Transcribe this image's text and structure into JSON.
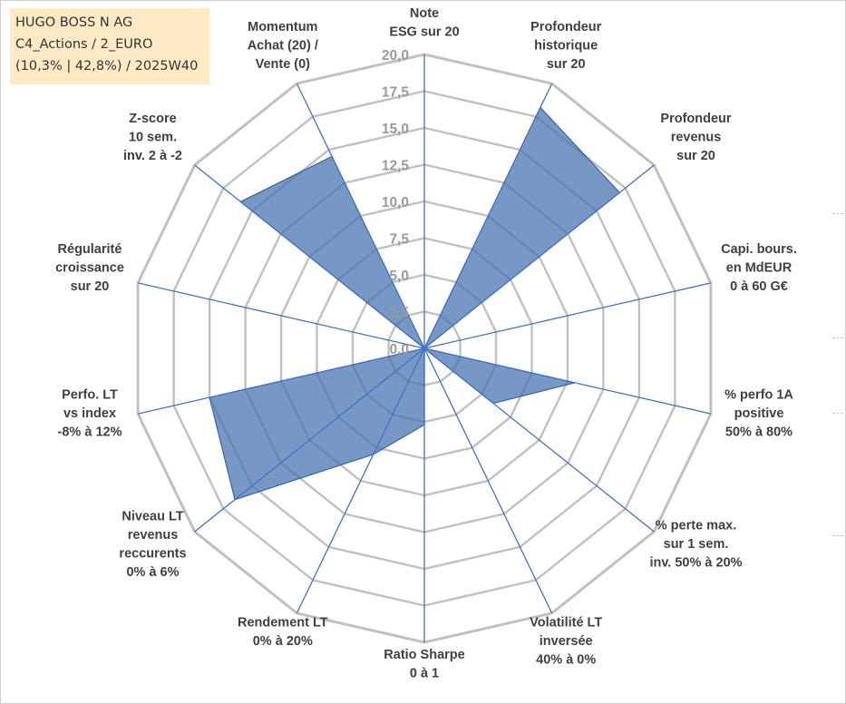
{
  "header": {
    "line1": "HUGO BOSS N AG",
    "line2": "C4_Actions / 2_EURO",
    "line3": "(10,3% | 42,8%) / 2025W40"
  },
  "colors": {
    "grid": "#c0c0c0",
    "spoke": "#4472c4",
    "fill": "#4a76b0",
    "header_bg": "#fde9c4"
  },
  "chart_data": {
    "type": "radar",
    "title": "",
    "rmin": 0,
    "rmax": 20,
    "ticks": [
      "0,0",
      "2,5",
      "5,0",
      "7,5",
      "10,0",
      "12,5",
      "15,0",
      "17,5",
      "20,0"
    ],
    "tick_values": [
      0,
      2.5,
      5,
      7.5,
      10,
      12.5,
      15,
      17.5,
      20
    ],
    "axes": [
      {
        "lines": [
          "Note",
          "ESG sur 20"
        ]
      },
      {
        "lines": [
          "Profondeur",
          "historique",
          "sur 20"
        ]
      },
      {
        "lines": [
          "Profondeur",
          "revenus",
          "sur 20"
        ]
      },
      {
        "lines": [
          "Capi. bours.",
          "en MdEUR",
          "0 à 60 G€"
        ]
      },
      {
        "lines": [
          "% perfo 1A",
          "positive",
          "50% à 80%"
        ]
      },
      {
        "lines": [
          "% perte max.",
          "sur 1 sem.",
          "inv. 50% à 20%"
        ]
      },
      {
        "lines": [
          "Volatilité LT",
          "inversée",
          "40% à 0%"
        ]
      },
      {
        "lines": [
          "Ratio Sharpe",
          "0 à 1"
        ]
      },
      {
        "lines": [
          "Rendement LT",
          "0% à 20%"
        ]
      },
      {
        "lines": [
          "Niveau LT",
          "revenus",
          "reccurents",
          "0% à 6%"
        ]
      },
      {
        "lines": [
          "Perfo. LT",
          "vs index",
          "-8% à 12%"
        ]
      },
      {
        "lines": [
          "Régularité",
          "croissance",
          "sur 20"
        ]
      },
      {
        "lines": [
          "Z-score",
          "10 sem.",
          "inv. 2 à -2"
        ]
      },
      {
        "lines": [
          "Momentum",
          "Achat (20) /",
          "Vente (0)"
        ]
      }
    ],
    "series": [
      {
        "name": "HUGO BOSS N AG",
        "values": [
          0,
          18.2,
          17.0,
          0,
          10.5,
          6.0,
          0,
          5.2,
          8.0,
          16.5,
          15.0,
          0,
          16.0,
          14.5
        ]
      }
    ]
  }
}
